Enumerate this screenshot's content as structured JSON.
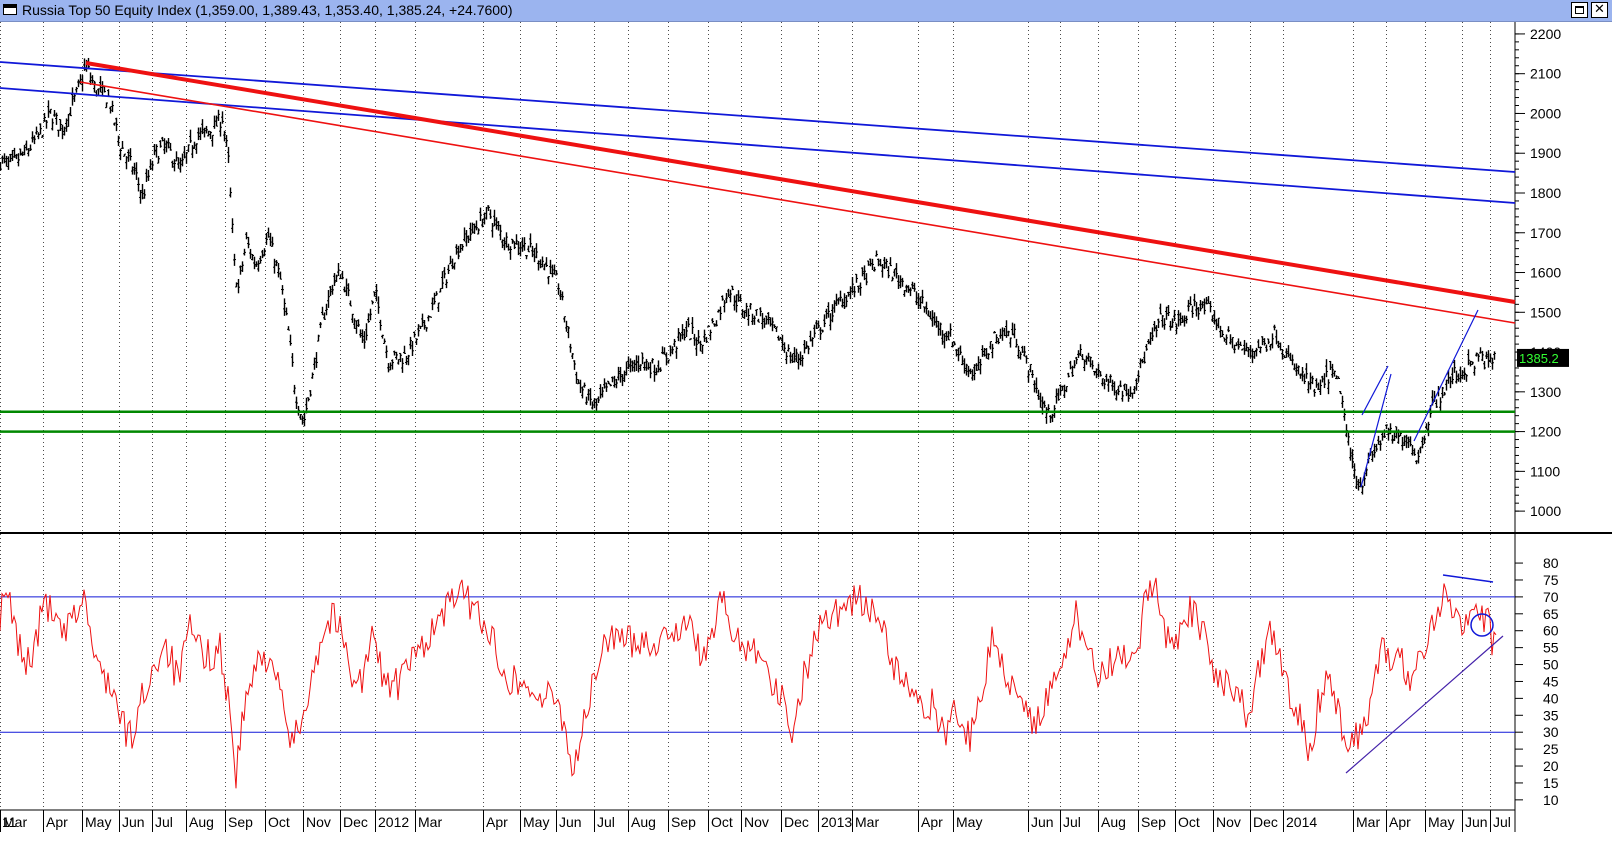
{
  "window": {
    "title": "Russia Top 50 Equity Index (1,359.00, 1,389.43, 1,353.40, 1,385.24, +24.7600)",
    "maximize_glyph": "",
    "close_glyph": "✕"
  },
  "chart_data": [
    {
      "type": "ohlc",
      "title": "Russia Top 50 Equity Index",
      "last": {
        "open": 1359.0,
        "high": 1389.43,
        "low": 1353.4,
        "close": 1385.24,
        "change": 24.76
      },
      "last_label": "1385.2",
      "ylim": [
        950,
        2230
      ],
      "yticks": [
        1000,
        1100,
        1200,
        1300,
        1400,
        1500,
        1600,
        1700,
        1800,
        1900,
        2000,
        2100,
        2200
      ],
      "x_tick_labels": [
        "11",
        "Mar",
        "Apr",
        "May",
        "Jun",
        "Jul",
        "Aug",
        "Sep",
        "Oct",
        "Nov",
        "Dec",
        "2012",
        "Mar",
        "Apr",
        "May",
        "Jun",
        "Jul",
        "Aug",
        "Sep",
        "Oct",
        "Nov",
        "Dec",
        "2013",
        "Mar",
        "Apr",
        "May",
        "Jun",
        "Jul",
        "Aug",
        "Sep",
        "Oct",
        "Nov",
        "Dec",
        "2014",
        "Mar",
        "Apr",
        "May",
        "Jun",
        "Jul"
      ],
      "anchors": [
        [
          0,
          1880
        ],
        [
          10,
          1870
        ],
        [
          25,
          1900
        ],
        [
          40,
          1950
        ],
        [
          50,
          2000
        ],
        [
          62,
          1960
        ],
        [
          75,
          2040
        ],
        [
          86,
          2120
        ],
        [
          95,
          2060
        ],
        [
          108,
          2040
        ],
        [
          120,
          1920
        ],
        [
          135,
          1850
        ],
        [
          142,
          1790
        ],
        [
          155,
          1900
        ],
        [
          165,
          1920
        ],
        [
          180,
          1860
        ],
        [
          195,
          1940
        ],
        [
          212,
          1960
        ],
        [
          222,
          1990
        ],
        [
          228,
          1880
        ],
        [
          234,
          1620
        ],
        [
          238,
          1560
        ],
        [
          246,
          1680
        ],
        [
          255,
          1620
        ],
        [
          268,
          1690
        ],
        [
          280,
          1580
        ],
        [
          288,
          1450
        ],
        [
          295,
          1300
        ],
        [
          303,
          1220
        ],
        [
          313,
          1350
        ],
        [
          322,
          1480
        ],
        [
          332,
          1570
        ],
        [
          340,
          1600
        ],
        [
          352,
          1510
        ],
        [
          363,
          1420
        ],
        [
          375,
          1550
        ],
        [
          388,
          1380
        ],
        [
          405,
          1390
        ],
        [
          420,
          1450
        ],
        [
          438,
          1540
        ],
        [
          455,
          1650
        ],
        [
          470,
          1700
        ],
        [
          488,
          1750
        ],
        [
          505,
          1680
        ],
        [
          522,
          1670
        ],
        [
          542,
          1630
        ],
        [
          558,
          1570
        ],
        [
          570,
          1420
        ],
        [
          578,
          1320
        ],
        [
          586,
          1290
        ],
        [
          595,
          1260
        ],
        [
          602,
          1290
        ],
        [
          612,
          1320
        ],
        [
          625,
          1350
        ],
        [
          640,
          1380
        ],
        [
          655,
          1360
        ],
        [
          670,
          1400
        ],
        [
          686,
          1460
        ],
        [
          700,
          1420
        ],
        [
          715,
          1480
        ],
        [
          728,
          1560
        ],
        [
          742,
          1510
        ],
        [
          760,
          1490
        ],
        [
          778,
          1440
        ],
        [
          792,
          1380
        ],
        [
          800,
          1390
        ],
        [
          820,
          1460
        ],
        [
          840,
          1530
        ],
        [
          858,
          1570
        ],
        [
          877,
          1630
        ],
        [
          892,
          1600
        ],
        [
          906,
          1570
        ],
        [
          922,
          1520
        ],
        [
          936,
          1470
        ],
        [
          950,
          1440
        ],
        [
          962,
          1380
        ],
        [
          975,
          1340
        ],
        [
          985,
          1400
        ],
        [
          1000,
          1450
        ],
        [
          1015,
          1440
        ],
        [
          1030,
          1350
        ],
        [
          1040,
          1280
        ],
        [
          1048,
          1240
        ],
        [
          1060,
          1290
        ],
        [
          1072,
          1360
        ],
        [
          1082,
          1400
        ],
        [
          1095,
          1350
        ],
        [
          1110,
          1320
        ],
        [
          1130,
          1300
        ],
        [
          1146,
          1400
        ],
        [
          1162,
          1490
        ],
        [
          1178,
          1470
        ],
        [
          1195,
          1520
        ],
        [
          1210,
          1500
        ],
        [
          1225,
          1440
        ],
        [
          1245,
          1400
        ],
        [
          1265,
          1420
        ],
        [
          1275,
          1450
        ],
        [
          1288,
          1380
        ],
        [
          1305,
          1330
        ],
        [
          1318,
          1300
        ],
        [
          1330,
          1350
        ],
        [
          1340,
          1310
        ],
        [
          1347,
          1180
        ],
        [
          1352,
          1120
        ],
        [
          1360,
          1060
        ],
        [
          1366,
          1110
        ],
        [
          1374,
          1150
        ],
        [
          1385,
          1200
        ],
        [
          1395,
          1180
        ],
        [
          1405,
          1190
        ],
        [
          1413,
          1160
        ],
        [
          1418,
          1130
        ],
        [
          1425,
          1210
        ],
        [
          1433,
          1270
        ],
        [
          1442,
          1300
        ],
        [
          1452,
          1340
        ],
        [
          1462,
          1350
        ],
        [
          1472,
          1370
        ],
        [
          1480,
          1390
        ],
        [
          1488,
          1370
        ],
        [
          1495,
          1385
        ]
      ],
      "horizontal_lines": [
        {
          "value": 1250,
          "color": "#008800"
        },
        {
          "value": 1200,
          "color": "#008800"
        }
      ]
    },
    {
      "type": "line",
      "indicator": "oscillator",
      "ylim": [
        7,
        88
      ],
      "yticks": [
        10,
        15,
        20,
        25,
        30,
        35,
        40,
        45,
        50,
        55,
        60,
        65,
        70,
        75,
        80
      ],
      "levels": [
        70,
        30
      ],
      "anchors": [
        [
          0,
          65
        ],
        [
          8,
          70
        ],
        [
          15,
          60
        ],
        [
          25,
          50
        ],
        [
          35,
          55
        ],
        [
          45,
          70
        ],
        [
          55,
          62
        ],
        [
          65,
          58
        ],
        [
          75,
          65
        ],
        [
          85,
          70
        ],
        [
          95,
          50
        ],
        [
          110,
          45
        ],
        [
          122,
          32
        ],
        [
          132,
          28
        ],
        [
          142,
          40
        ],
        [
          152,
          48
        ],
        [
          165,
          57
        ],
        [
          178,
          45
        ],
        [
          190,
          60
        ],
        [
          205,
          52
        ],
        [
          220,
          55
        ],
        [
          228,
          40
        ],
        [
          236,
          18
        ],
        [
          246,
          40
        ],
        [
          258,
          50
        ],
        [
          270,
          54
        ],
        [
          282,
          38
        ],
        [
          292,
          26
        ],
        [
          302,
          34
        ],
        [
          312,
          48
        ],
        [
          322,
          58
        ],
        [
          332,
          65
        ],
        [
          340,
          60
        ],
        [
          352,
          48
        ],
        [
          362,
          45
        ],
        [
          372,
          58
        ],
        [
          385,
          45
        ],
        [
          398,
          44
        ],
        [
          410,
          50
        ],
        [
          420,
          55
        ],
        [
          432,
          60
        ],
        [
          445,
          65
        ],
        [
          455,
          72
        ],
        [
          470,
          68
        ],
        [
          482,
          64
        ],
        [
          495,
          55
        ],
        [
          510,
          46
        ],
        [
          525,
          44
        ],
        [
          540,
          40
        ],
        [
          555,
          40
        ],
        [
          565,
          33
        ],
        [
          572,
          18
        ],
        [
          580,
          28
        ],
        [
          590,
          40
        ],
        [
          600,
          52
        ],
        [
          612,
          60
        ],
        [
          625,
          56
        ],
        [
          640,
          58
        ],
        [
          655,
          56
        ],
        [
          670,
          60
        ],
        [
          686,
          62
        ],
        [
          700,
          54
        ],
        [
          712,
          56
        ],
        [
          720,
          72
        ],
        [
          730,
          60
        ],
        [
          745,
          56
        ],
        [
          760,
          55
        ],
        [
          773,
          44
        ],
        [
          785,
          38
        ],
        [
          793,
          30
        ],
        [
          800,
          42
        ],
        [
          812,
          55
        ],
        [
          825,
          65
        ],
        [
          840,
          66
        ],
        [
          855,
          70
        ],
        [
          870,
          66
        ],
        [
          882,
          62
        ],
        [
          895,
          48
        ],
        [
          908,
          44
        ],
        [
          920,
          36
        ],
        [
          932,
          38
        ],
        [
          945,
          30
        ],
        [
          955,
          40
        ],
        [
          965,
          28
        ],
        [
          975,
          30
        ],
        [
          985,
          48
        ],
        [
          995,
          60
        ],
        [
          1005,
          46
        ],
        [
          1015,
          44
        ],
        [
          1025,
          40
        ],
        [
          1035,
          32
        ],
        [
          1045,
          38
        ],
        [
          1055,
          44
        ],
        [
          1065,
          50
        ],
        [
          1075,
          66
        ],
        [
          1085,
          56
        ],
        [
          1095,
          48
        ],
        [
          1108,
          50
        ],
        [
          1120,
          52
        ],
        [
          1135,
          48
        ],
        [
          1145,
          68
        ],
        [
          1155,
          75
        ],
        [
          1165,
          60
        ],
        [
          1178,
          58
        ],
        [
          1190,
          66
        ],
        [
          1202,
          60
        ],
        [
          1215,
          48
        ],
        [
          1230,
          44
        ],
        [
          1240,
          40
        ],
        [
          1250,
          32
        ],
        [
          1260,
          50
        ],
        [
          1270,
          58
        ],
        [
          1280,
          52
        ],
        [
          1290,
          40
        ],
        [
          1300,
          36
        ],
        [
          1310,
          24
        ],
        [
          1318,
          38
        ],
        [
          1328,
          50
        ],
        [
          1336,
          40
        ],
        [
          1344,
          28
        ],
        [
          1352,
          26
        ],
        [
          1362,
          32
        ],
        [
          1372,
          40
        ],
        [
          1382,
          56
        ],
        [
          1392,
          48
        ],
        [
          1402,
          52
        ],
        [
          1412,
          44
        ],
        [
          1420,
          52
        ],
        [
          1428,
          58
        ],
        [
          1438,
          66
        ],
        [
          1446,
          74
        ],
        [
          1454,
          66
        ],
        [
          1462,
          62
        ],
        [
          1470,
          68
        ],
        [
          1478,
          66
        ],
        [
          1486,
          64
        ],
        [
          1492,
          57
        ],
        [
          1496,
          55
        ]
      ]
    }
  ]
}
